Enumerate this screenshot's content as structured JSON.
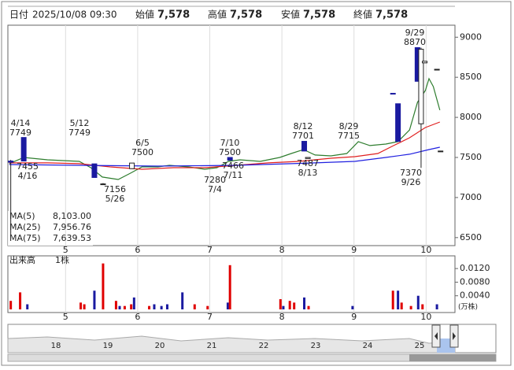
{
  "header": [
    {
      "label": "日付",
      "value": "2025/10/08 09:30",
      "color": "#222"
    },
    {
      "label": "始値",
      "value": "7,578",
      "color": "#222"
    },
    {
      "label": "高値",
      "value": "7,578",
      "color": "#e00000"
    },
    {
      "label": "安値",
      "value": "7,578",
      "color": "#1a7a1a"
    },
    {
      "label": "終値",
      "value": "7,578",
      "color": "#222"
    }
  ],
  "chart_data": {
    "type": "candlestick",
    "xlim": [
      4.2,
      10.4
    ],
    "xticks": [
      5,
      6,
      7,
      8,
      9,
      10
    ],
    "ylim": [
      6400,
      9150
    ],
    "yticks": [
      6500,
      7000,
      7500,
      8000,
      8500,
      9000
    ],
    "grid": true,
    "up_color": "#ffffff",
    "down_color": "#1a1aa0",
    "candles": [
      {
        "x": 4.24,
        "open": 7455,
        "high": 7470,
        "low": 6520,
        "close": 7440
      },
      {
        "x": 4.42,
        "open": 7749,
        "high": 7749,
        "low": 7455,
        "close": 7455
      },
      {
        "x": 5.4,
        "open": 7420,
        "high": 7420,
        "low": 7250,
        "close": 7250
      },
      {
        "x": 5.52,
        "open": 7170,
        "high": 7180,
        "low": 7156,
        "close": 7170
      },
      {
        "x": 5.92,
        "open": 7360,
        "high": 7430,
        "low": 7360,
        "close": 7430
      },
      {
        "x": 7.28,
        "open": 7500,
        "high": 7500,
        "low": 7466,
        "close": 7466
      },
      {
        "x": 8.31,
        "open": 7701,
        "high": 7701,
        "low": 7580,
        "close": 7580
      },
      {
        "x": 8.36,
        "open": 7487,
        "high": 7500,
        "low": 7487,
        "close": 7500
      },
      {
        "x": 9.54,
        "open": 8300,
        "high": 8300,
        "low": 8290,
        "close": 8290
      },
      {
        "x": 9.61,
        "open": 8170,
        "high": 8170,
        "low": 7700,
        "close": 7700
      },
      {
        "x": 9.88,
        "open": 8870,
        "high": 8870,
        "low": 8450,
        "close": 8450
      },
      {
        "x": 9.93,
        "open": 7920,
        "high": 8870,
        "low": 7370,
        "close": 8850
      },
      {
        "x": 9.98,
        "open": 8680,
        "high": 8700,
        "low": 8680,
        "close": 8700
      },
      {
        "x": 10.15,
        "open": 8600,
        "high": 8600,
        "low": 8600,
        "close": 8600
      },
      {
        "x": 10.2,
        "open": 7580,
        "high": 7580,
        "low": 7580,
        "close": 7580
      }
    ],
    "series": [
      {
        "name": "MA(5)",
        "color": "#2e7d2e",
        "legend_value": "8,103.00",
        "x": [
          4.22,
          4.42,
          4.75,
          5.19,
          5.35,
          5.51,
          5.73,
          5.9,
          6.06,
          6.28,
          6.44,
          6.71,
          6.93,
          7.1,
          7.26,
          7.42,
          7.7,
          7.97,
          8.13,
          8.3,
          8.46,
          8.68,
          8.9,
          9.06,
          9.22,
          9.44,
          9.61,
          9.77,
          9.88,
          9.99,
          10.04,
          10.1,
          10.19
        ],
        "values": [
          7422,
          7500,
          7471,
          7451,
          7372,
          7255,
          7225,
          7304,
          7382,
          7382,
          7402,
          7382,
          7353,
          7372,
          7451,
          7471,
          7451,
          7500,
          7549,
          7598,
          7530,
          7520,
          7549,
          7697,
          7648,
          7667,
          7697,
          7844,
          8188,
          8335,
          8483,
          8384,
          8090
        ]
      },
      {
        "name": "MA(25)",
        "color": "#e02020",
        "legend_value": "7,956.76",
        "x": [
          4.22,
          4.75,
          5.19,
          5.62,
          6.06,
          6.5,
          6.93,
          7.37,
          7.81,
          8.24,
          8.68,
          9.01,
          9.33,
          9.55,
          9.77,
          9.99,
          10.19
        ],
        "values": [
          7432,
          7432,
          7422,
          7382,
          7353,
          7372,
          7372,
          7402,
          7432,
          7451,
          7490,
          7510,
          7549,
          7648,
          7746,
          7873,
          7942
        ]
      },
      {
        "name": "MA(75)",
        "color": "#2020e0",
        "legend_value": "7,639.53",
        "x": [
          4.22,
          5.19,
          6.28,
          7.37,
          8.46,
          9.01,
          9.44,
          9.77,
          10.04,
          10.19
        ],
        "values": [
          7412,
          7402,
          7392,
          7402,
          7432,
          7451,
          7500,
          7540,
          7598,
          7628
        ]
      }
    ],
    "annotations": [
      {
        "date": "4/14",
        "value": 7749
      },
      {
        "date": "4/16",
        "value": 7455
      },
      {
        "date": "5/12",
        "value": 7749
      },
      {
        "date": "5/26",
        "value": 7156
      },
      {
        "date": "6/5",
        "value": 7500
      },
      {
        "date": "7/10",
        "value": 7500
      },
      {
        "date": "7/11",
        "value": 7466
      },
      {
        "date": "7/4",
        "value": 7280
      },
      {
        "date": "8/12",
        "value": 7701
      },
      {
        "date": "8/13",
        "value": 7487
      },
      {
        "date": "8/29",
        "value": 7715
      },
      {
        "date": "9/29",
        "value": 8870
      },
      {
        "date": "9/26",
        "value": 7370
      }
    ],
    "volume": {
      "label": "出来高",
      "unit_label": "1株",
      "axis_unit": "(万株)",
      "ylim": [
        0,
        0.0155
      ],
      "yticks": [
        {
          "value": 0.004,
          "label": "0.0040"
        },
        {
          "value": 0.008,
          "label": "0.0080"
        },
        {
          "value": 0.012,
          "label": "0.0120"
        }
      ],
      "x": [
        4.24,
        4.37,
        4.47,
        5.21,
        5.26,
        5.4,
        5.52,
        5.7,
        5.75,
        5.82,
        5.91,
        5.95,
        6.16,
        6.23,
        6.33,
        6.41,
        6.62,
        6.79,
        6.97,
        7.25,
        7.28,
        7.98,
        8.02,
        8.11,
        8.17,
        8.31,
        8.37,
        8.98,
        9.54,
        9.61,
        9.66,
        9.79,
        9.89,
        9.95,
        10.15
      ],
      "values": [
        0.0025,
        0.005,
        0.0015,
        0.002,
        0.0015,
        0.0055,
        0.0135,
        0.0025,
        0.001,
        0.001,
        0.0015,
        0.0035,
        0.001,
        0.0015,
        0.001,
        0.0015,
        0.005,
        0.0015,
        0.001,
        0.002,
        0.013,
        0.003,
        0.001,
        0.0025,
        0.002,
        0.0035,
        0.001,
        0.001,
        0.0055,
        0.0055,
        0.002,
        0.001,
        0.004,
        0.0015,
        0.0015
      ],
      "colors": [
        "#e00000",
        "#e00000",
        "#1a1aa0",
        "#e00000",
        "#e00000",
        "#1a1aa0",
        "#e00000",
        "#e00000",
        "#1a1aa0",
        "#e00000",
        "#e00000",
        "#1a1aa0",
        "#e00000",
        "#1a1aa0",
        "#1a1aa0",
        "#1a1aa0",
        "#1a1aa0",
        "#e00000",
        "#e00000",
        "#1a1aa0",
        "#e00000",
        "#e00000",
        "#1a1aa0",
        "#e00000",
        "#e00000",
        "#1a1aa0",
        "#e00000",
        "#1a1aa0",
        "#e00000",
        "#1a1aa0",
        "#e00000",
        "#e00000",
        "#1a1aa0",
        "#e00000",
        "#1a1aa0"
      ]
    },
    "navigator": {
      "labels": [
        "18",
        "19",
        "20",
        "21",
        "22",
        "23",
        "24",
        "25"
      ]
    }
  }
}
